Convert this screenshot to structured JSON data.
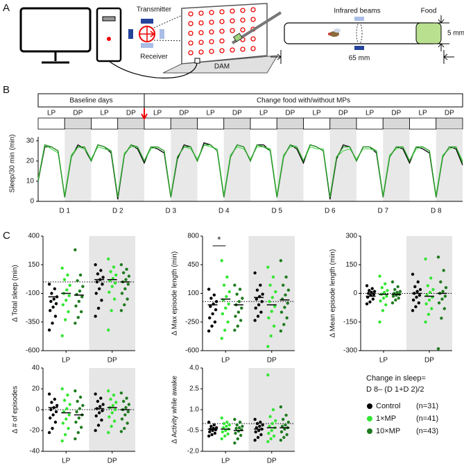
{
  "panel_labels": [
    "A",
    "B",
    "C"
  ],
  "diagram": {
    "transmitter": "Transmitter",
    "receiver": "Receiver",
    "dam": "DAM",
    "infrared": "Infrared beams",
    "food": "Food",
    "diameter": "5 mm",
    "length": "65 mm"
  },
  "legend": {
    "title": [
      "Change in sleep=",
      "D 8– (D 1+D 2)/2"
    ],
    "counts": [
      "(n=31)",
      "(n=41)",
      "(n=43)"
    ]
  },
  "chart_data": [
    {
      "type": "line",
      "ylabel": "Sleep/30 min (min)",
      "phases": [
        "Baseline days",
        "Change food with/without MPs"
      ],
      "periods": [
        "LP",
        "DP",
        "LP",
        "DP",
        "LP",
        "DP",
        "LP",
        "DP",
        "LP",
        "DP",
        "LP",
        "DP",
        "LP",
        "DP",
        "LP",
        "DP"
      ],
      "day_labels": [
        "D 1",
        "D 2",
        "D 3",
        "D 4",
        "D 5",
        "D 6",
        "D 7",
        "D 8"
      ],
      "x": [
        0,
        3,
        6,
        9,
        12,
        15,
        18,
        21,
        24,
        27,
        30,
        33,
        36,
        39,
        42,
        45,
        48,
        51,
        54,
        57,
        60,
        63,
        66,
        69,
        72,
        75,
        78,
        81,
        84,
        87,
        90,
        93,
        96,
        99,
        102,
        105,
        108,
        111,
        114,
        117,
        120,
        123,
        126,
        129,
        132,
        135,
        138,
        141,
        144,
        147,
        150,
        153,
        156,
        159,
        162,
        165,
        168,
        171,
        174,
        177,
        180,
        183,
        186,
        189,
        192
      ],
      "xlim": [
        0,
        192
      ],
      "ylim": [
        0,
        32
      ],
      "yticks": [
        0,
        10,
        20,
        30
      ],
      "series": [
        {
          "name": "Control",
          "color": "#000000",
          "values": [
            10,
            27,
            27,
            25,
            2,
            22,
            28,
            26,
            20,
            28,
            27,
            24,
            1,
            23,
            28,
            26,
            19,
            27,
            26,
            24,
            2,
            21,
            28,
            27,
            20,
            29,
            28,
            25,
            2,
            22,
            28,
            27,
            20,
            28,
            28,
            25,
            2,
            22,
            28,
            26,
            19,
            28,
            27,
            25,
            1,
            21,
            28,
            27,
            20,
            27,
            27,
            24,
            2,
            22,
            27,
            26,
            19,
            27,
            26,
            24,
            2,
            22,
            27,
            26,
            18
          ]
        },
        {
          "name": "1×MP",
          "color": "#5ddb5d",
          "values": [
            11,
            28,
            26,
            24,
            3,
            23,
            27,
            26,
            21,
            27,
            26,
            25,
            2,
            24,
            27,
            27,
            20,
            26,
            27,
            25,
            3,
            22,
            27,
            26,
            21,
            28,
            27,
            26,
            3,
            23,
            27,
            26,
            21,
            27,
            27,
            26,
            3,
            23,
            27,
            27,
            20,
            27,
            26,
            26,
            2,
            22,
            25,
            26,
            21,
            26,
            26,
            25,
            3,
            23,
            26,
            27,
            20,
            26,
            27,
            25,
            3,
            23,
            26,
            27,
            20
          ]
        },
        {
          "name": "10×MP",
          "color": "#2a9a2a",
          "values": [
            10,
            28,
            27,
            25,
            2,
            22,
            27,
            27,
            20,
            28,
            27,
            25,
            2,
            23,
            28,
            27,
            20,
            27,
            27,
            25,
            2,
            22,
            27,
            27,
            20,
            28,
            28,
            25,
            2,
            22,
            28,
            27,
            20,
            28,
            27,
            25,
            2,
            22,
            28,
            27,
            20,
            28,
            27,
            25,
            2,
            22,
            27,
            27,
            20,
            27,
            27,
            25,
            2,
            22,
            27,
            27,
            20,
            27,
            27,
            25,
            2,
            22,
            27,
            27,
            19
          ]
        }
      ]
    },
    {
      "type": "strip",
      "ylabel": "Δ Total sleep (min)",
      "categories": [
        "LP",
        "DP"
      ],
      "shaded": [
        false,
        true
      ],
      "ylim": [
        -600,
        400
      ],
      "yticks": [
        400,
        150,
        -100,
        -350,
        -600
      ],
      "series": [
        {
          "name": "Control",
          "color": "#000000",
          "values": [
            [
              -20,
              -60,
              -100,
              -130,
              -150,
              -170,
              -190,
              -220,
              -250,
              -300,
              -360,
              -420
            ],
            [
              150,
              100,
              70,
              40,
              20,
              0,
              -20,
              -60,
              -100,
              -160,
              -230,
              -300
            ]
          ],
          "medians": [
            -130,
            20
          ]
        },
        {
          "name": "1×MP",
          "color": "#33e633",
          "values": [
            [
              120,
              60,
              20,
              -30,
              -70,
              -100,
              -120,
              -160,
              -200,
              -260,
              -330,
              -470
            ],
            [
              200,
              130,
              90,
              60,
              30,
              10,
              -10,
              -40,
              -90,
              -150,
              -250,
              -420
            ]
          ],
          "medians": [
            -100,
            20
          ]
        },
        {
          "name": "10×MP",
          "color": "#1f7a1f",
          "values": [
            [
              280,
              60,
              10,
              -40,
              -80,
              -110,
              -130,
              -170,
              -210,
              -260,
              -310,
              -360
            ],
            [
              150,
              110,
              80,
              50,
              20,
              0,
              -20,
              -60,
              -100,
              -150,
              -200,
              -250
            ]
          ],
          "medians": [
            -115,
            0
          ]
        }
      ]
    },
    {
      "type": "strip",
      "ylabel": "Δ Max episode length (min)",
      "categories": [
        "LP",
        "DP"
      ],
      "shaded": [
        false,
        true
      ],
      "ylim": [
        -600,
        800
      ],
      "yticks": [
        800,
        450,
        100,
        -250,
        -600
      ],
      "annotation": "*",
      "series": [
        {
          "name": "Control",
          "color": "#000000",
          "values": [
            [
              150,
              80,
              40,
              0,
              -30,
              -60,
              -100,
              -150,
              -200,
              -250,
              -300,
              -360
            ],
            [
              350,
              200,
              140,
              90,
              60,
              30,
              0,
              -40,
              -80,
              -130,
              -180,
              -230
            ]
          ],
          "medians": [
            -40,
            50
          ]
        },
        {
          "name": "1×MP",
          "color": "#33e633",
          "values": [
            [
              500,
              300,
              200,
              120,
              60,
              20,
              -30,
              -80,
              -150,
              -250,
              -350,
              -450
            ],
            [
              420,
              300,
              200,
              120,
              50,
              0,
              -60,
              -120,
              -200,
              -300,
              -420,
              -550
            ]
          ],
          "medians": [
            30,
            -40
          ]
        },
        {
          "name": "10×MP",
          "color": "#1f7a1f",
          "values": [
            [
              200,
              150,
              90,
              40,
              0,
              -40,
              -80,
              -130,
              -180,
              -230,
              -300,
              -350
            ],
            [
              500,
              300,
              200,
              140,
              80,
              30,
              -20,
              -70,
              -130,
              -200,
              -280,
              -360
            ]
          ],
          "medians": [
            -40,
            20
          ]
        }
      ]
    },
    {
      "type": "strip",
      "ylabel": "Δ Mean episode length (min)",
      "categories": [
        "LP",
        "DP"
      ],
      "shaded": [
        false,
        true
      ],
      "ylim": [
        -300,
        300
      ],
      "yticks": [
        300,
        150,
        0,
        -150,
        -300
      ],
      "series": [
        {
          "name": "Control",
          "color": "#000000",
          "values": [
            [
              40,
              25,
              15,
              10,
              5,
              0,
              -5,
              -10,
              -20,
              -30,
              -45,
              -55
            ],
            [
              100,
              60,
              35,
              20,
              10,
              0,
              -10,
              -20,
              -35,
              -50,
              -70,
              -90
            ]
          ],
          "medians": [
            -15,
            0
          ]
        },
        {
          "name": "1×MP",
          "color": "#33e633",
          "values": [
            [
              90,
              50,
              30,
              15,
              5,
              -5,
              -15,
              -25,
              -40,
              -60,
              -90,
              -150
            ],
            [
              180,
              80,
              40,
              20,
              5,
              -10,
              -20,
              -35,
              -55,
              -80,
              -110,
              -150
            ]
          ],
          "medians": [
            -5,
            -15
          ]
        },
        {
          "name": "10×MP",
          "color": "#1f7a1f",
          "values": [
            [
              60,
              35,
              20,
              10,
              5,
              0,
              -5,
              -10,
              -15,
              -25,
              -35,
              -50
            ],
            [
              190,
              120,
              60,
              30,
              10,
              0,
              -15,
              -30,
              -50,
              -80,
              -130,
              -290
            ]
          ],
          "medians": [
            -5,
            0
          ]
        }
      ]
    },
    {
      "type": "strip",
      "ylabel": "Δ # of episodes",
      "categories": [
        "LP",
        "DP"
      ],
      "shaded": [
        false,
        true
      ],
      "ylim": [
        -40,
        40
      ],
      "yticks": [
        40,
        20,
        0,
        -20,
        -40
      ],
      "series": [
        {
          "name": "Control",
          "color": "#000000",
          "values": [
            [
              15,
              10,
              7,
              4,
              2,
              0,
              -2,
              -5,
              -8,
              -12,
              -18,
              -22
            ],
            [
              15,
              11,
              8,
              5,
              3,
              1,
              -1,
              -3,
              -6,
              -10,
              -15,
              -20
            ]
          ],
          "medians": [
            2,
            1
          ]
        },
        {
          "name": "1×MP",
          "color": "#33e633",
          "values": [
            [
              20,
              14,
              9,
              5,
              1,
              -2,
              -5,
              -9,
              -13,
              -18,
              -24,
              -30
            ],
            [
              18,
              14,
              10,
              7,
              4,
              2,
              0,
              -3,
              -7,
              -11,
              -16,
              -22
            ]
          ],
          "medians": [
            -3,
            2
          ]
        },
        {
          "name": "10×MP",
          "color": "#1f7a1f",
          "values": [
            [
              18,
              12,
              8,
              4,
              1,
              -2,
              -5,
              -8,
              -12,
              -17,
              -22,
              -28
            ],
            [
              16,
              11,
              8,
              5,
              2,
              0,
              -2,
              -5,
              -9,
              -13,
              -18,
              -21
            ]
          ],
          "medians": [
            -5,
            0
          ]
        }
      ]
    },
    {
      "type": "strip",
      "ylabel": "Δ Activity while awake",
      "categories": [
        "LP",
        "DP"
      ],
      "shaded": [
        false,
        true
      ],
      "ylim": [
        -2,
        4
      ],
      "yticks": [
        {
          "value": 4,
          "label": "4.0"
        },
        2.5,
        {
          "value": 1,
          "label": "1.0"
        },
        -0.5,
        {
          "value": -2,
          "label": "-2.0"
        }
      ],
      "series": [
        {
          "name": "Control",
          "color": "#000000",
          "values": [
            [
              0.1,
              -0.1,
              -0.2,
              -0.3,
              -0.35,
              -0.4,
              -0.45,
              -0.5,
              -0.6,
              -0.7,
              -0.8,
              -0.9
            ],
            [
              0.3,
              0.1,
              0,
              -0.1,
              -0.2,
              -0.3,
              -0.4,
              -0.5,
              -0.6,
              -0.8,
              -1,
              -1.2
            ]
          ],
          "medians": [
            -0.4,
            -0.4
          ]
        },
        {
          "name": "1×MP",
          "color": "#33e633",
          "values": [
            [
              0.4,
              0.1,
              0,
              -0.1,
              -0.2,
              -0.3,
              -0.4,
              -0.5,
              -0.6,
              -0.75,
              -0.9,
              -1.1
            ],
            [
              3.5,
              1,
              0.5,
              0.2,
              0,
              -0.2,
              -0.3,
              -0.5,
              -0.7,
              -0.9,
              -1.1,
              -1.3
            ]
          ],
          "medians": [
            -0.4,
            -0.3
          ]
        },
        {
          "name": "10×MP",
          "color": "#1f7a1f",
          "values": [
            [
              0.3,
              0.1,
              -0.1,
              -0.2,
              -0.3,
              -0.35,
              -0.45,
              -0.55,
              -0.7,
              -0.85,
              -1.1,
              -1.4
            ],
            [
              1.2,
              0.6,
              0.3,
              0.1,
              -0.1,
              -0.2,
              -0.3,
              -0.4,
              -0.6,
              -0.8,
              -1,
              -1.2
            ]
          ],
          "medians": [
            -0.5,
            -0.3
          ]
        }
      ]
    }
  ]
}
